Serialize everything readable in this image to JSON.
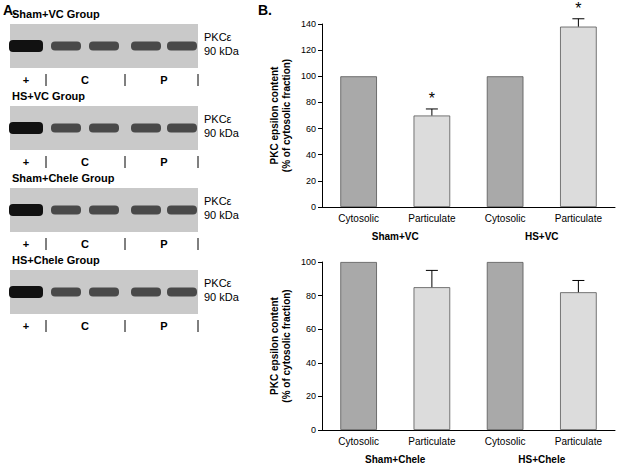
{
  "panel_labels": [
    "A.",
    "B."
  ],
  "blots": {
    "band_label": [
      "PKCε",
      "90 kDa"
    ],
    "lane_labels": [
      "+",
      "C",
      "P"
    ],
    "groups": [
      "Sham+VC Group",
      "HS+VC Group",
      "Sham+Chele Group",
      "HS+Chele Group"
    ]
  },
  "chart_data": [
    {
      "type": "bar",
      "ylabel": "PKC epsilon content\n(% of cytosolic fraction)",
      "categories": [
        "Cytosolic",
        "Particulate",
        "Cytosolic",
        "Particulate"
      ],
      "groups": [
        "Sham+VC",
        "HS+VC"
      ],
      "values": [
        100,
        70,
        100,
        138
      ],
      "errors": [
        0,
        5,
        0,
        6
      ],
      "significance": [
        null,
        "*",
        null,
        "*"
      ],
      "colors": [
        "#a9a9a9",
        "#dcdcdc",
        "#a9a9a9",
        "#dcdcdc"
      ],
      "ylim": [
        0,
        140
      ],
      "yticks": [
        0,
        20,
        40,
        60,
        80,
        100,
        120,
        140
      ],
      "grid": false
    },
    {
      "type": "bar",
      "ylabel": "PKC epsilon content\n(% of cytosolic fraction)",
      "categories": [
        "Cytosolic",
        "Particulate",
        "Cytosolic",
        "Particulate"
      ],
      "groups": [
        "Sham+Chele",
        "HS+Chele"
      ],
      "values": [
        100,
        85,
        100,
        82
      ],
      "errors": [
        0,
        10,
        0,
        7
      ],
      "significance": [
        null,
        null,
        null,
        null
      ],
      "colors": [
        "#a9a9a9",
        "#dcdcdc",
        "#a9a9a9",
        "#dcdcdc"
      ],
      "ylim": [
        0,
        100
      ],
      "yticks": [
        0,
        20,
        40,
        60,
        80,
        100
      ],
      "grid": false
    }
  ]
}
